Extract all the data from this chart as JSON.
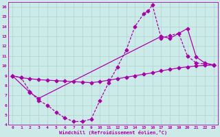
{
  "background_color": "#cceae8",
  "grid_color": "#aad4d0",
  "line_color": "#aa00aa",
  "xlabel": "Windchill (Refroidissement éolien,°C)",
  "xlim": [
    -0.5,
    23.5
  ],
  "ylim": [
    4,
    16.5
  ],
  "yticks": [
    4,
    5,
    6,
    7,
    8,
    9,
    10,
    11,
    12,
    13,
    14,
    15,
    16
  ],
  "xticks": [
    0,
    1,
    2,
    3,
    4,
    5,
    6,
    7,
    8,
    9,
    10,
    11,
    12,
    13,
    14,
    15,
    16,
    17,
    18,
    19,
    20,
    21,
    22,
    23
  ],
  "line1_x": [
    0,
    1,
    2,
    3,
    4,
    5,
    6,
    7,
    8,
    9,
    10,
    11,
    12,
    13,
    14,
    15,
    16,
    17,
    18,
    19,
    20,
    21,
    22,
    23
  ],
  "line1_y": [
    9.0,
    8.8,
    8.7,
    8.6,
    8.55,
    8.5,
    8.45,
    8.4,
    8.35,
    8.3,
    8.4,
    8.55,
    8.7,
    8.85,
    9.0,
    9.15,
    9.3,
    9.5,
    9.65,
    9.8,
    9.9,
    10.0,
    10.05,
    10.1
  ],
  "line2_x": [
    0,
    1,
    2,
    3,
    4,
    5,
    6,
    7,
    8,
    9,
    10,
    11,
    12,
    13,
    14,
    15,
    15.5,
    16,
    17,
    18,
    19,
    20,
    21,
    22,
    23
  ],
  "line2_y": [
    9.0,
    8.8,
    7.4,
    6.5,
    6.0,
    5.3,
    4.7,
    4.35,
    4.35,
    4.6,
    6.5,
    8.3,
    9.9,
    11.6,
    14.0,
    15.3,
    15.55,
    16.2,
    12.8,
    13.1,
    13.3,
    11.0,
    10.3,
    10.2,
    10.1
  ],
  "line3_x": [
    0,
    2,
    3,
    17,
    18,
    19,
    20,
    21,
    22,
    23
  ],
  "line3_y": [
    9.0,
    7.3,
    6.7,
    13.0,
    12.8,
    13.3,
    13.8,
    10.9,
    10.3,
    10.1
  ],
  "marker": "D",
  "marker_size": 2.5,
  "linewidth": 0.9
}
